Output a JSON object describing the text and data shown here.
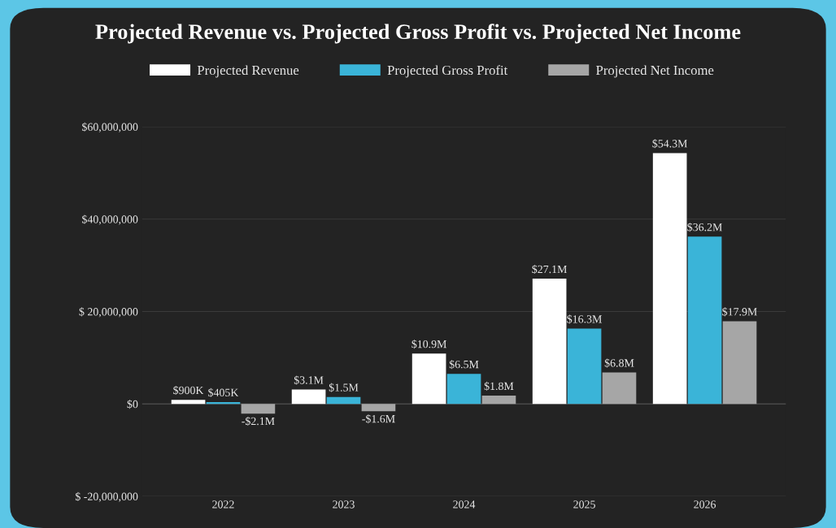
{
  "chart_data": {
    "type": "bar",
    "title": "Projected Revenue vs. Projected Gross Profit vs. Projected Net Income",
    "categories": [
      "2022",
      "2023",
      "2024",
      "2025",
      "2026"
    ],
    "series": [
      {
        "name": "Projected Revenue",
        "color": "#ffffff",
        "values": [
          900000,
          3100000,
          10900000,
          27100000,
          54300000
        ],
        "value_labels": [
          "$900K",
          "$3.1M",
          "$10.9M",
          "$27.1M",
          "$54.3M"
        ]
      },
      {
        "name": "Projected Gross Profit",
        "color": "#3ab4d8",
        "values": [
          405000,
          1500000,
          6500000,
          16300000,
          36200000
        ],
        "value_labels": [
          "$405K",
          "$1.5M",
          "$6.5M",
          "$16.3M",
          "$36.2M"
        ]
      },
      {
        "name": "Projected Net Income",
        "color": "#a6a6a6",
        "values": [
          -2100000,
          -1600000,
          1800000,
          6800000,
          17900000
        ],
        "value_labels": [
          "-$2.1M",
          "-$1.6M",
          "$1.8M",
          "$6.8M",
          "$17.9M"
        ]
      }
    ],
    "ylim": [
      -20000000,
      60000000
    ],
    "yticks": [
      {
        "value": -20000000,
        "label": "$ -20,000,000"
      },
      {
        "value": 0,
        "label": "$0"
      },
      {
        "value": 20000000,
        "label": "$ 20,000,000"
      },
      {
        "value": 40000000,
        "label": "$40,000,000"
      },
      {
        "value": 60000000,
        "label": "$60,000,000"
      }
    ],
    "grid": "y",
    "legend": "top"
  }
}
